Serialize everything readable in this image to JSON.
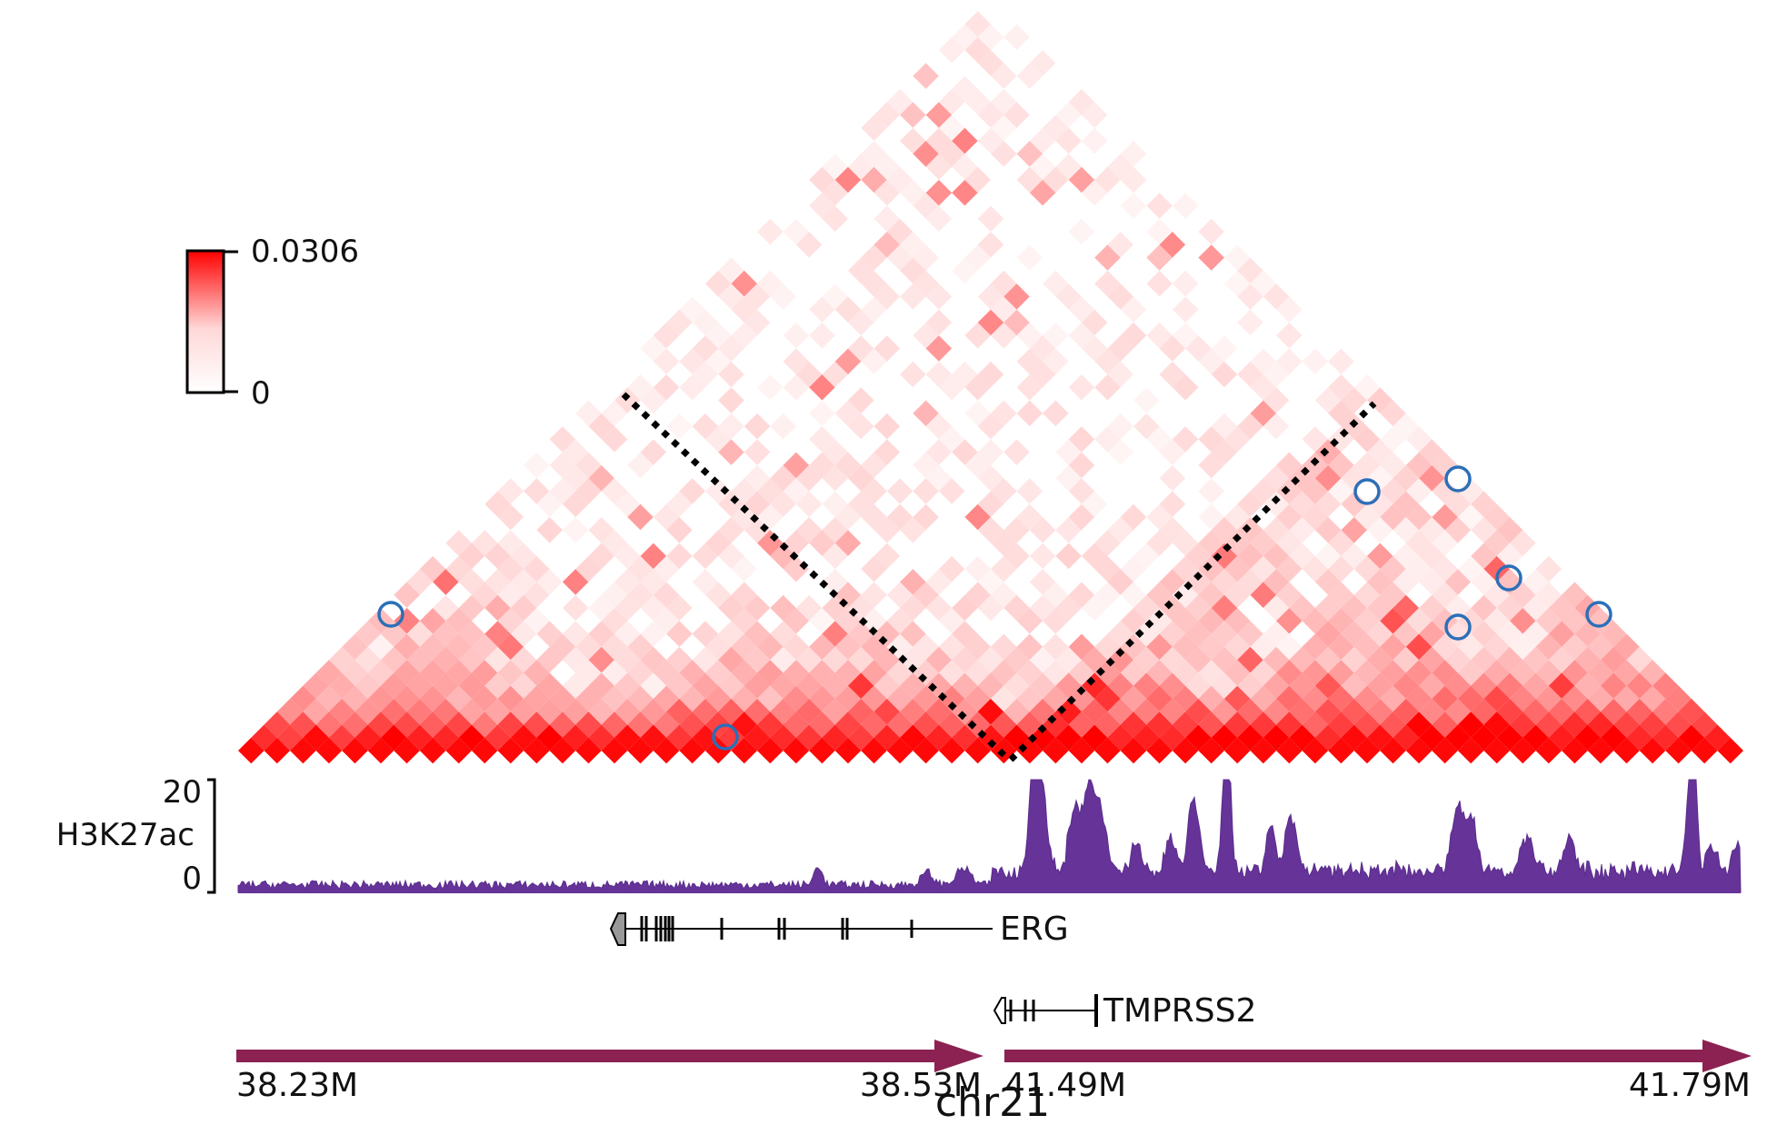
{
  "colorbar": {
    "max_label": "0.0306",
    "min_label": "0",
    "color_low": "#ffffff",
    "color_high": "#ff0000"
  },
  "track": {
    "label": "H3K27ac",
    "ymax_label": "20",
    "ymin_label": "0",
    "fill_color": "#663399"
  },
  "genes": [
    {
      "name": "ERG",
      "strand": "-"
    },
    {
      "name": "TMPRSS2",
      "strand": "-"
    }
  ],
  "axis": {
    "chrom_label": "chr21",
    "segments": [
      {
        "start_label": "38.23M",
        "end_label": "38.53M"
      },
      {
        "start_label": "41.49M",
        "end_label": "41.79M"
      }
    ],
    "arrow_color": "#8b2252"
  },
  "annotations": {
    "boundary_style": "black dotted lines",
    "loop_marker_color": "#2c6fb8"
  }
}
